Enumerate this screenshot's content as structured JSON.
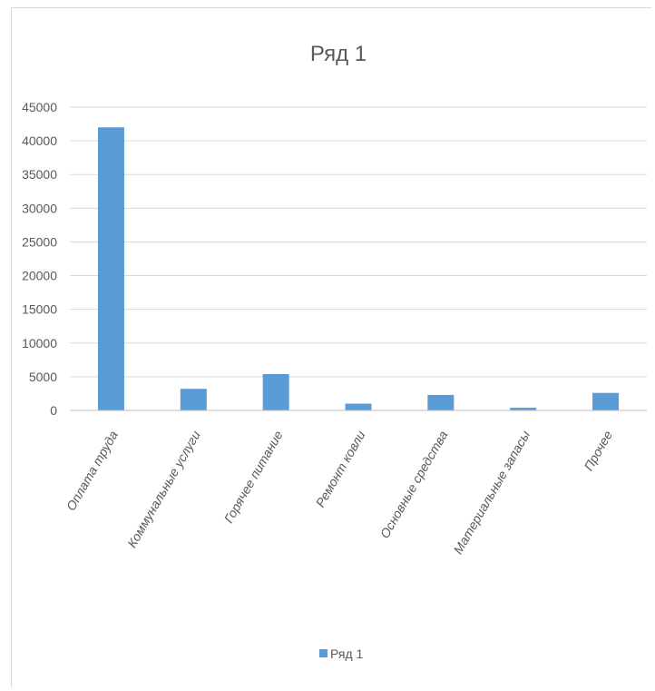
{
  "chart_data": {
    "type": "bar",
    "title": "Ряд 1",
    "xlabel": "",
    "ylabel": "",
    "ylim": [
      0,
      45000
    ],
    "yticks": [
      0,
      5000,
      10000,
      15000,
      20000,
      25000,
      30000,
      35000,
      40000,
      45000
    ],
    "grid": true,
    "legend": "bottom",
    "categories": [
      "Оплата труда",
      "Коммунальные услуги",
      "Горячее питание",
      "Ремонт ковли",
      "Основные средства",
      "Материальные запасы",
      "Прочее"
    ],
    "series": [
      {
        "name": "Ряд 1",
        "color": "#5b9bd5",
        "values": [
          42000,
          3200,
          5400,
          1000,
          2300,
          400,
          2600
        ]
      }
    ]
  }
}
